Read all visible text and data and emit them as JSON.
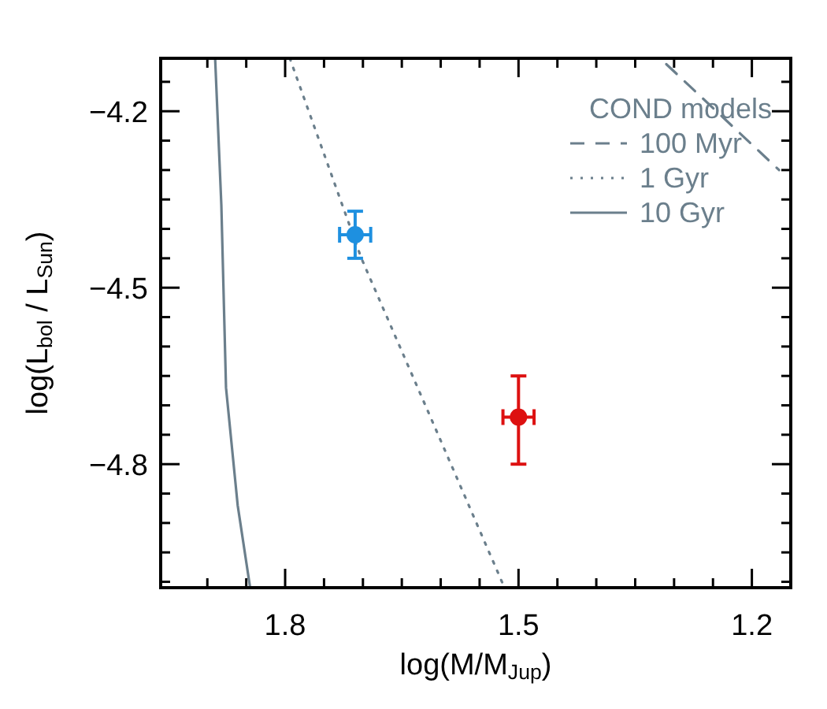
{
  "chart_data": {
    "type": "scatter",
    "xlabel": "log(M/M$_{Jup}$)",
    "ylabel": "log(L$_{bol}$ / L$_{Sun}$)",
    "legend_title": "COND models",
    "legend": "top right",
    "grid": false,
    "xlim": [
      1.96,
      1.15
    ],
    "ylim": [
      -5.01,
      -4.11
    ],
    "xticks": [
      {
        "value": 1.9,
        "label": null
      },
      {
        "value": 1.85,
        "label": null
      },
      1.8,
      {
        "value": 1.75,
        "label": null
      },
      {
        "value": 1.7,
        "label": null
      },
      {
        "value": 1.65,
        "label": null
      },
      {
        "value": 1.6,
        "label": null
      },
      {
        "value": 1.55,
        "label": null
      },
      1.5,
      {
        "value": 1.45,
        "label": null
      },
      {
        "value": 1.4,
        "label": null
      },
      {
        "value": 1.35,
        "label": null
      },
      {
        "value": 1.3,
        "label": null
      },
      {
        "value": 1.25,
        "label": null
      },
      1.2
    ],
    "yticks": [
      {
        "value": -4.15,
        "label": null
      },
      {
        "value": -4.2,
        "label": "−4.2"
      },
      {
        "value": -4.25,
        "label": null
      },
      {
        "value": -4.3,
        "label": null
      },
      {
        "value": -4.35,
        "label": null
      },
      {
        "value": -4.4,
        "label": null
      },
      {
        "value": -4.45,
        "label": null
      },
      {
        "value": -4.5,
        "label": "−4.5"
      },
      {
        "value": -4.55,
        "label": null
      },
      {
        "value": -4.6,
        "label": null
      },
      {
        "value": -4.65,
        "label": null
      },
      {
        "value": -4.7,
        "label": null
      },
      {
        "value": -4.75,
        "label": null
      },
      {
        "value": -4.8,
        "label": "−4.8"
      },
      {
        "value": -4.85,
        "label": null
      },
      {
        "value": -4.9,
        "label": null
      },
      {
        "value": -4.95,
        "label": null
      },
      {
        "value": -5.0,
        "label": null
      }
    ],
    "series": [
      {
        "type": "line",
        "name": "100 Myr",
        "color": "#6b7f8c",
        "line_style": "dashed",
        "x": [
          1.31,
          1.165
        ],
        "values": [
          -4.12,
          -4.3
        ]
      },
      {
        "type": "line",
        "name": "1 Gyr",
        "color": "#6b7f8c",
        "line_style": "dotted",
        "x": [
          1.794,
          1.702,
          1.6,
          1.518
        ],
        "values": [
          -4.11,
          -4.45,
          -4.76,
          -5.01
        ]
      },
      {
        "type": "line",
        "name": "10 Gyr",
        "color": "#6b7f8c",
        "line_style": "solid",
        "x": [
          1.89,
          1.882,
          1.876,
          1.861,
          1.845
        ],
        "values": [
          -4.11,
          -4.36,
          -4.67,
          -4.87,
          -5.01
        ]
      },
      {
        "type": "scatter",
        "color": "#1e90e0",
        "marker": "circle",
        "x": [
          1.71
        ],
        "values": [
          -4.41
        ],
        "errors": [
          0.04
        ],
        "xerrors": [
          0.02
        ]
      },
      {
        "type": "scatter",
        "color": "#dd1111",
        "marker": "circle",
        "x": [
          1.5
        ],
        "values": [
          -4.72
        ],
        "errors": [
          [
            -4.8,
            -4.65
          ]
        ],
        "xerrors": [
          0.02
        ]
      }
    ]
  }
}
